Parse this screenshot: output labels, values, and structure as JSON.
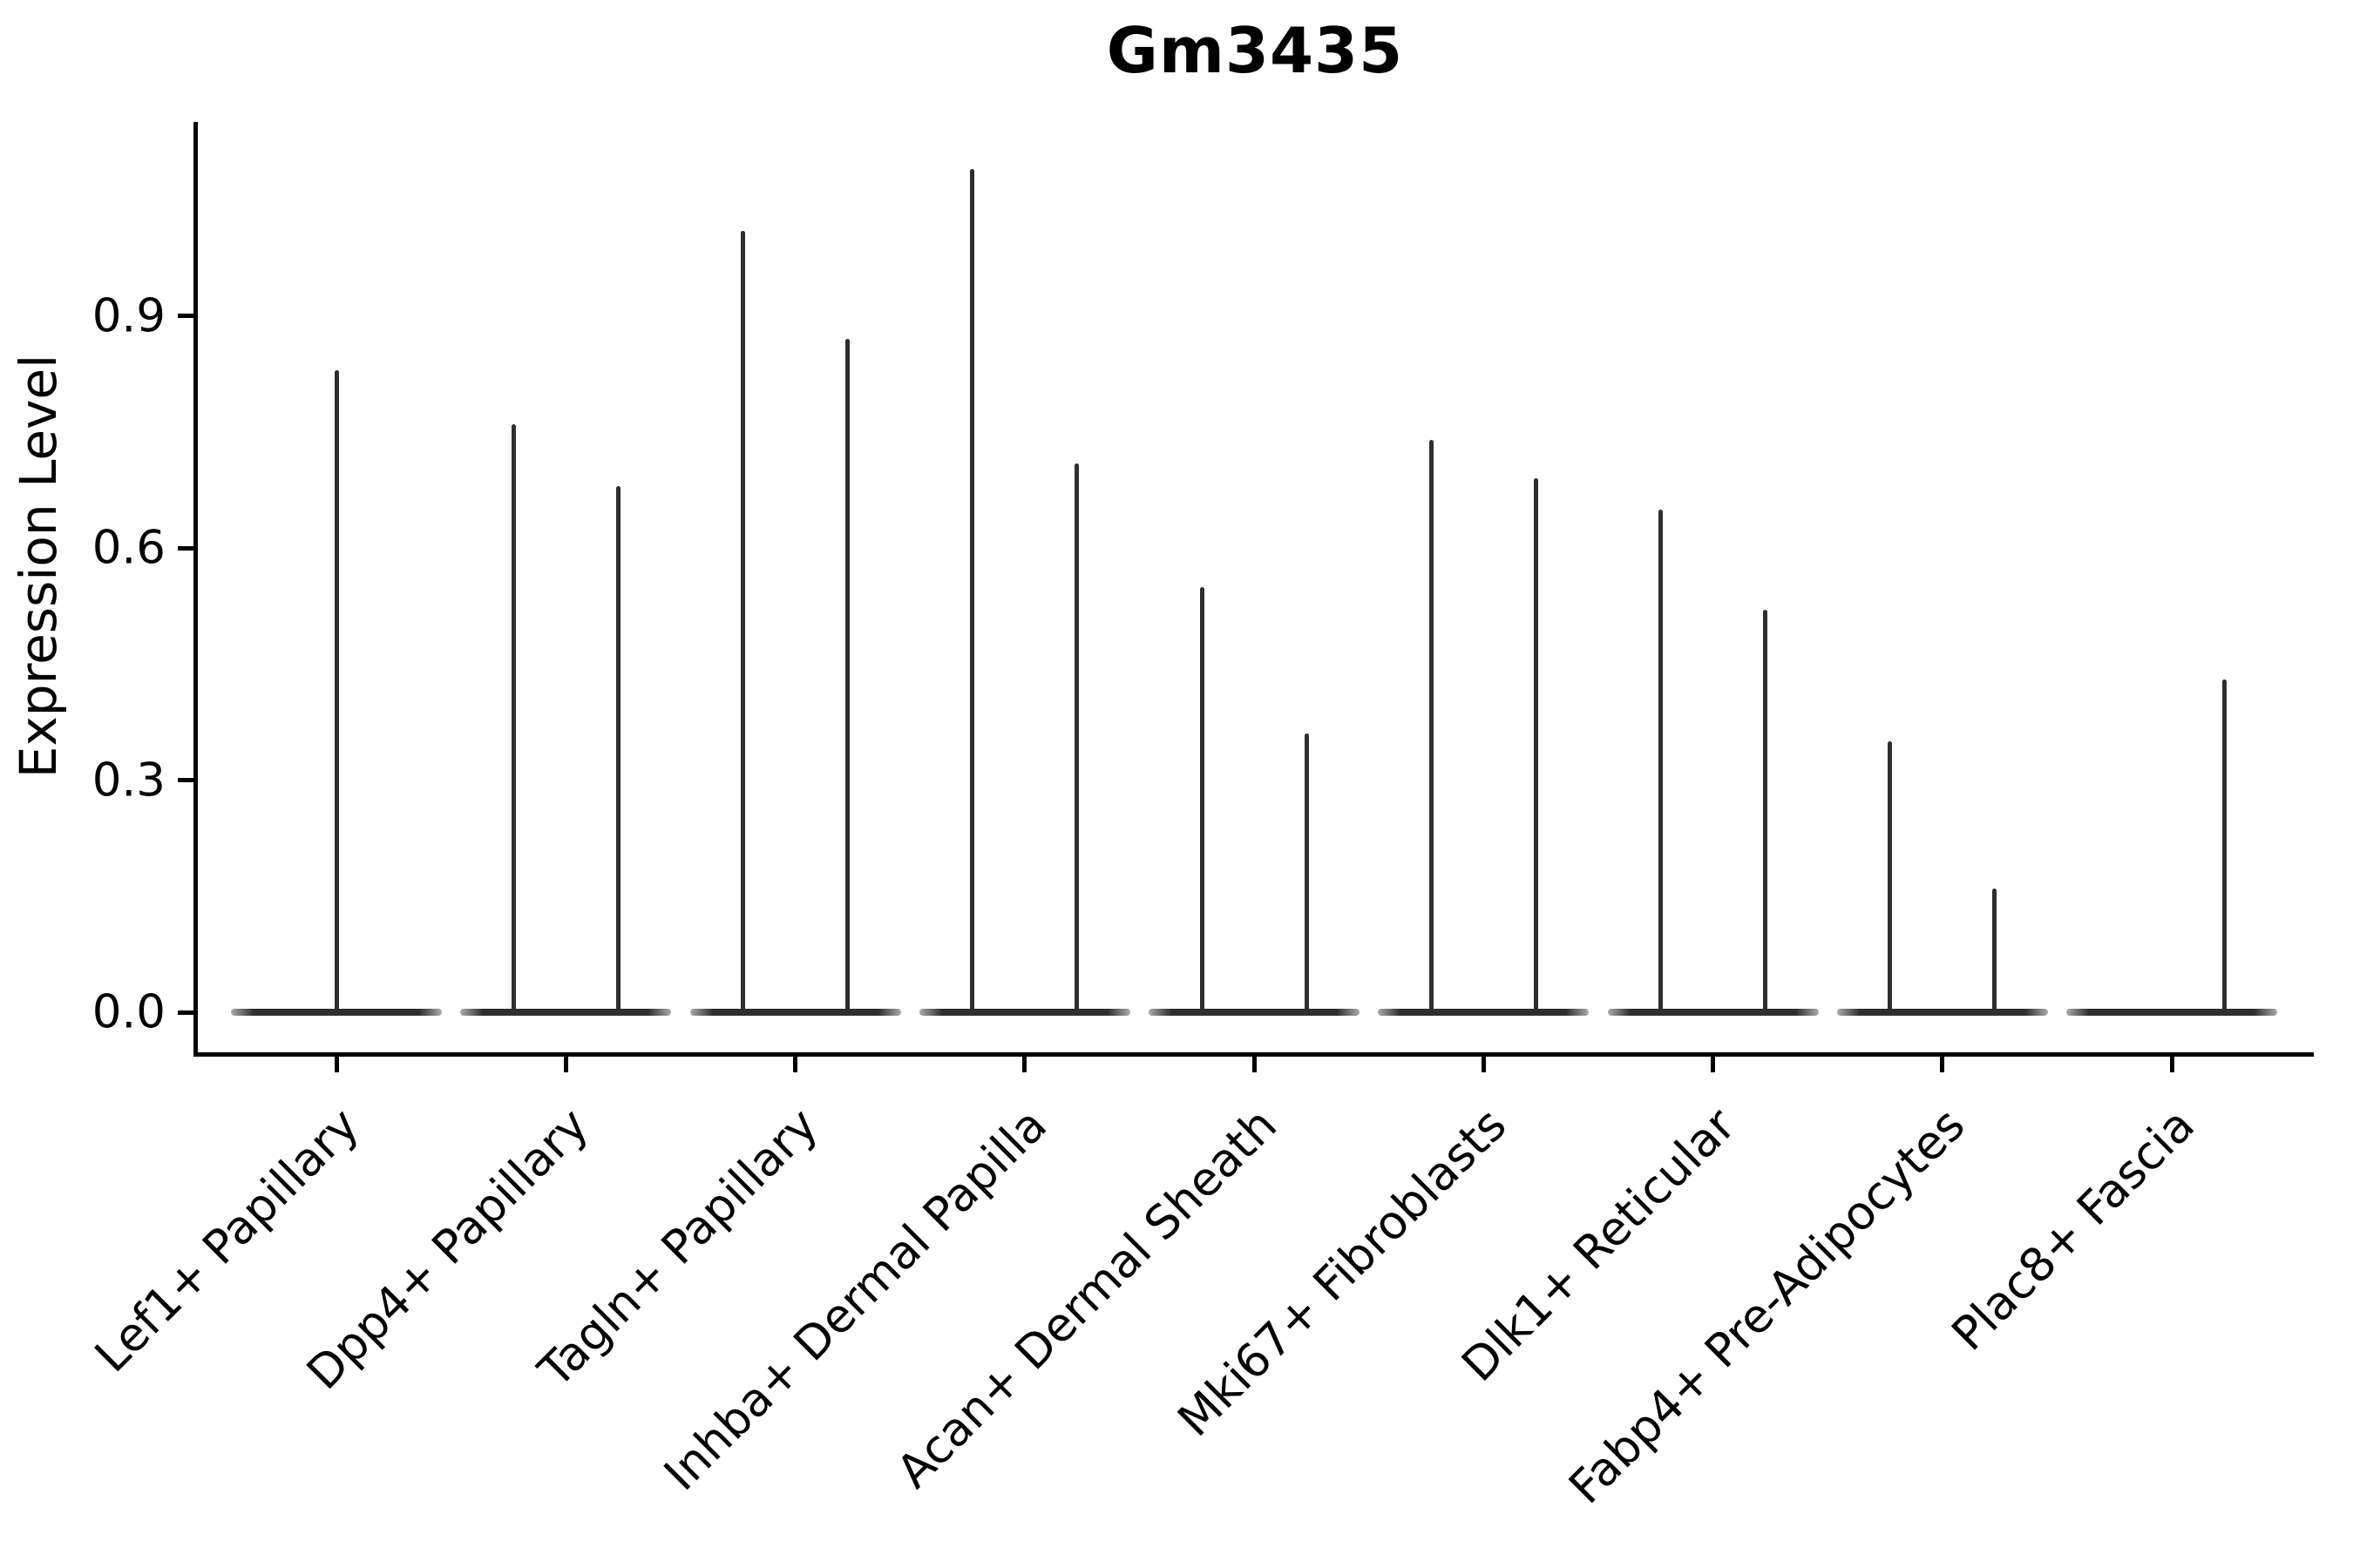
{
  "figure": {
    "title": "Gm3435"
  },
  "chart_data": {
    "type": "violin",
    "title": "Gm3435",
    "xlabel": "",
    "ylabel": "Expression Level",
    "yticks": [
      "0.0",
      "0.3",
      "0.6",
      "0.9"
    ],
    "ylim": [
      -0.05,
      1.15
    ],
    "grid": false,
    "legend": "none",
    "categories": [
      "Lef1+ Papillary",
      "Dpp4+ Papillary",
      "Tagln+ Papillary",
      "Inhba+ Dermal Papilla",
      "Acan+ Dermal Sheath",
      "Mki67+ Fibroblasts",
      "Dlk1+ Reticular",
      "Fabp4+ Pre-Adipocytes",
      "Plac8+ Fascia"
    ],
    "violins": [
      {
        "category": "Lef1+ Papillary",
        "baseline_value": 0.0,
        "spikes": [
          {
            "side": "center",
            "max": 0.83
          }
        ]
      },
      {
        "category": "Dpp4+ Papillary",
        "baseline_value": 0.0,
        "spikes": [
          {
            "side": "left",
            "max": 0.76
          },
          {
            "side": "right",
            "max": 0.68
          }
        ]
      },
      {
        "category": "Tagln+ Papillary",
        "baseline_value": 0.0,
        "spikes": [
          {
            "side": "left",
            "max": 1.01
          },
          {
            "side": "right",
            "max": 0.87
          }
        ]
      },
      {
        "category": "Inhba+ Dermal Papilla",
        "baseline_value": 0.0,
        "spikes": [
          {
            "side": "left",
            "max": 1.09
          },
          {
            "side": "right",
            "max": 0.71
          }
        ]
      },
      {
        "category": "Acan+ Dermal Sheath",
        "baseline_value": 0.0,
        "spikes": [
          {
            "side": "left",
            "max": 0.55
          },
          {
            "side": "right",
            "max": 0.36
          }
        ]
      },
      {
        "category": "Mki67+ Fibroblasts",
        "baseline_value": 0.0,
        "spikes": [
          {
            "side": "left",
            "max": 0.74
          },
          {
            "side": "right",
            "max": 0.69
          }
        ]
      },
      {
        "category": "Dlk1+ Reticular",
        "baseline_value": 0.0,
        "spikes": [
          {
            "side": "left",
            "max": 0.65
          },
          {
            "side": "right",
            "max": 0.52
          }
        ]
      },
      {
        "category": "Fabp4+ Pre-Adipocytes",
        "baseline_value": 0.0,
        "spikes": [
          {
            "side": "left",
            "max": 0.35
          },
          {
            "side": "right",
            "max": 0.16
          }
        ]
      },
      {
        "category": "Plac8+ Fascia",
        "baseline_value": 0.0,
        "spikes": [
          {
            "side": "right",
            "max": 0.43
          }
        ]
      }
    ],
    "colors": {
      "violin": "#2e2e2e",
      "axis": "#000000",
      "text": "#000000",
      "background": "#ffffff"
    }
  }
}
